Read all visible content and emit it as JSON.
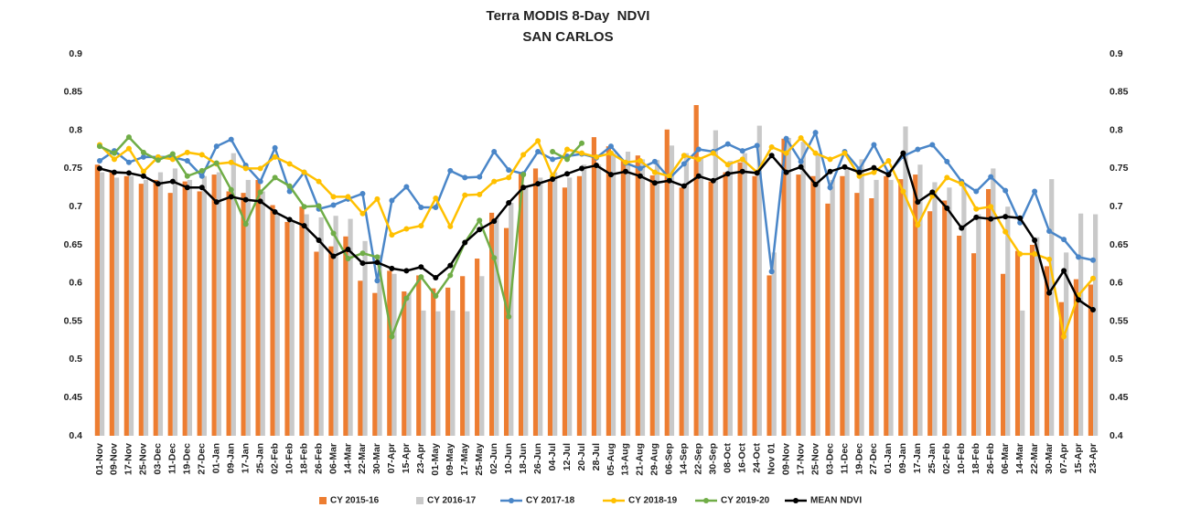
{
  "chart_data": {
    "type": "combo",
    "title": "Terra MODIS 8-Day  NDVI",
    "subtitle": "SAN CARLOS",
    "categories": [
      "01-Nov",
      "09-Nov",
      "17-Nov",
      "25-Nov",
      "03-Dec",
      "11-Dec",
      "19-Dec",
      "27-Dec",
      "01-Jan",
      "09-Jan",
      "17-Jan",
      "25-Jan",
      "02-Feb",
      "10-Feb",
      "18-Feb",
      "26-Feb",
      "06-Mar",
      "14-Mar",
      "22-Mar",
      "30-Mar",
      "07-Apr",
      "15-Apr",
      "23-Apr",
      "01-May",
      "09-May",
      "17-May",
      "25-May",
      "02-Jun",
      "10-Jun",
      "18-Jun",
      "26-Jun",
      "04-Jul",
      "12-Jul",
      "20-Jul",
      "28-Jul",
      "05-Aug",
      "13-Aug",
      "21-Aug",
      "29-Aug",
      "06-Sep",
      "14-Sep",
      "22-Sep",
      "30-Sep",
      "08-Oct",
      "16-Oct",
      "24-Oct",
      "Nov 01",
      "09-Nov",
      "17-Nov",
      "25-Nov",
      "03-Dec",
      "11-Dec",
      "19-Dec",
      "27-Dec",
      "01-Jan",
      "09-Jan",
      "17-Jan",
      "25-Jan",
      "02-Feb",
      "10-Feb",
      "18-Feb",
      "26-Feb",
      "06-Mar",
      "14-Mar",
      "22-Mar",
      "30-Mar",
      "07-Apr",
      "15-Apr",
      "23-Apr"
    ],
    "series": [
      {
        "name": "CY 2015-16",
        "type": "bar",
        "color": "#ed7d31",
        "values": [
          0.755,
          0.745,
          0.74,
          0.73,
          0.735,
          0.718,
          0.733,
          0.72,
          0.742,
          0.72,
          0.718,
          0.735,
          0.702,
          0.68,
          0.7,
          0.641,
          0.648,
          0.661,
          0.603,
          0.587,
          0.616,
          0.589,
          0.61,
          0.593,
          0.594,
          0.609,
          0.632,
          0.692,
          0.672,
          0.745,
          0.75,
          0.735,
          0.725,
          0.74,
          0.791,
          0.779,
          0.76,
          0.767,
          0.741,
          0.801,
          0.725,
          0.833,
          0.733,
          0.745,
          0.758,
          0.74,
          0.61,
          0.789,
          0.742,
          0.74,
          0.704,
          0.74,
          0.718,
          0.711,
          0.74,
          0.736,
          0.742,
          0.694,
          0.708,
          0.662,
          0.639,
          0.723,
          0.612,
          0.642,
          0.65,
          0.622,
          0.575,
          0.605,
          0.598
        ]
      },
      {
        "name": "CY 2016-17",
        "type": "bar",
        "color": "#c9c9c9",
        "values": [
          0.745,
          0.738,
          0.74,
          0.735,
          0.745,
          0.75,
          0.735,
          0.74,
          0.745,
          0.77,
          0.735,
          0.72,
          0.69,
          0.68,
          0.69,
          0.686,
          0.688,
          0.684,
          0.655,
          0.637,
          0.612,
          0.587,
          0.564,
          0.563,
          0.564,
          0.563,
          0.609,
          0.685,
          0.705,
          0.728,
          0.738,
          0.745,
          0.738,
          0.755,
          0.755,
          0.77,
          0.772,
          0.762,
          0.761,
          0.78,
          0.77,
          0.765,
          0.8,
          0.76,
          0.77,
          0.806,
          0.64,
          0.79,
          0.785,
          0.77,
          0.735,
          0.75,
          0.762,
          0.735,
          0.735,
          0.805,
          0.755,
          0.732,
          0.725,
          0.728,
          0.69,
          0.75,
          0.7,
          0.564,
          0.66,
          0.736,
          0.64,
          0.691,
          0.69
        ]
      },
      {
        "name": "CY 2017-18",
        "type": "line",
        "color": "#4a86c8",
        "values": [
          0.76,
          0.773,
          0.758,
          0.765,
          0.765,
          0.765,
          0.76,
          0.74,
          0.779,
          0.788,
          0.754,
          0.733,
          0.777,
          0.72,
          0.745,
          0.697,
          0.702,
          0.71,
          0.717,
          0.603,
          0.708,
          0.726,
          0.699,
          0.699,
          0.747,
          0.738,
          0.739,
          0.772,
          0.748,
          0.743,
          0.772,
          0.762,
          0.766,
          0.769,
          0.764,
          0.779,
          0.757,
          0.75,
          0.759,
          0.737,
          0.756,
          0.775,
          0.772,
          0.782,
          0.773,
          0.78,
          0.615,
          0.789,
          0.759,
          0.797,
          0.725,
          0.772,
          0.749,
          0.781,
          0.744,
          0.766,
          0.775,
          0.781,
          0.759,
          0.733,
          0.72,
          0.739,
          0.721,
          0.679,
          0.72,
          0.668,
          0.657,
          0.634,
          0.63
        ]
      },
      {
        "name": "CY 2018-19",
        "type": "line",
        "color": "#ffc000",
        "values": [
          0.781,
          0.762,
          0.776,
          0.746,
          0.765,
          0.762,
          0.771,
          0.768,
          0.756,
          0.758,
          0.75,
          0.75,
          0.765,
          0.756,
          0.745,
          0.733,
          0.713,
          0.713,
          0.691,
          0.71,
          0.663,
          0.671,
          0.675,
          0.711,
          0.674,
          0.715,
          0.716,
          0.733,
          0.738,
          0.768,
          0.786,
          0.74,
          0.775,
          0.77,
          0.765,
          0.77,
          0.758,
          0.76,
          0.745,
          0.74,
          0.767,
          0.762,
          0.77,
          0.755,
          0.762,
          0.745,
          0.778,
          0.77,
          0.79,
          0.77,
          0.762,
          0.77,
          0.74,
          0.745,
          0.76,
          0.72,
          0.676,
          0.714,
          0.738,
          0.73,
          0.697,
          0.7,
          0.667,
          0.638,
          0.638,
          0.631,
          0.53,
          0.584,
          0.606
        ]
      },
      {
        "name": "CY 2019-20",
        "type": "line",
        "color": "#70ad47",
        "values": [
          0.779,
          0.77,
          0.791,
          0.771,
          0.761,
          0.769,
          0.74,
          0.747,
          0.757,
          0.722,
          0.677,
          0.719,
          0.738,
          0.727,
          0.7,
          0.701,
          0.665,
          0.632,
          0.639,
          0.634,
          0.53,
          0.58,
          0.608,
          0.583,
          0.61,
          0.653,
          0.682,
          0.633,
          0.556,
          0.742,
          null,
          0.772,
          0.762,
          0.783,
          null,
          null,
          null,
          null,
          null,
          null,
          null,
          null,
          null,
          null,
          null,
          null,
          null,
          null,
          null,
          null,
          null,
          null,
          null,
          null,
          null,
          null,
          null,
          null,
          null,
          null,
          null,
          null,
          null,
          null,
          null,
          null,
          null,
          null,
          null
        ]
      },
      {
        "name": "MEAN NDVI",
        "type": "line",
        "color": "#000000",
        "values": [
          0.75,
          0.745,
          0.744,
          0.74,
          0.73,
          0.733,
          0.725,
          0.725,
          0.706,
          0.713,
          0.709,
          0.707,
          0.693,
          0.683,
          0.675,
          0.656,
          0.635,
          0.644,
          0.626,
          0.627,
          0.619,
          0.616,
          0.621,
          0.607,
          0.623,
          0.653,
          0.67,
          0.681,
          0.705,
          0.725,
          0.73,
          0.736,
          0.743,
          0.75,
          0.754,
          0.742,
          0.746,
          0.74,
          0.731,
          0.734,
          0.727,
          0.74,
          0.734,
          0.743,
          0.746,
          0.744,
          0.767,
          0.745,
          0.752,
          0.729,
          0.746,
          0.752,
          0.745,
          0.751,
          0.742,
          0.77,
          0.706,
          0.719,
          0.698,
          0.672,
          0.686,
          0.684,
          0.687,
          0.685,
          0.656,
          0.587,
          0.616,
          0.578,
          0.565
        ]
      }
    ],
    "ylim": [
      0.4,
      0.9
    ],
    "yticks": [
      0.4,
      0.45,
      0.5,
      0.55,
      0.6,
      0.65,
      0.7,
      0.75,
      0.8,
      0.85,
      0.9
    ],
    "y2lim": [
      0.4,
      0.9
    ],
    "y2ticks": [
      0.4,
      0.45,
      0.5,
      0.55,
      0.6,
      0.65,
      0.7,
      0.75,
      0.8,
      0.85,
      0.9
    ],
    "grid": false,
    "legend": "bottom"
  }
}
